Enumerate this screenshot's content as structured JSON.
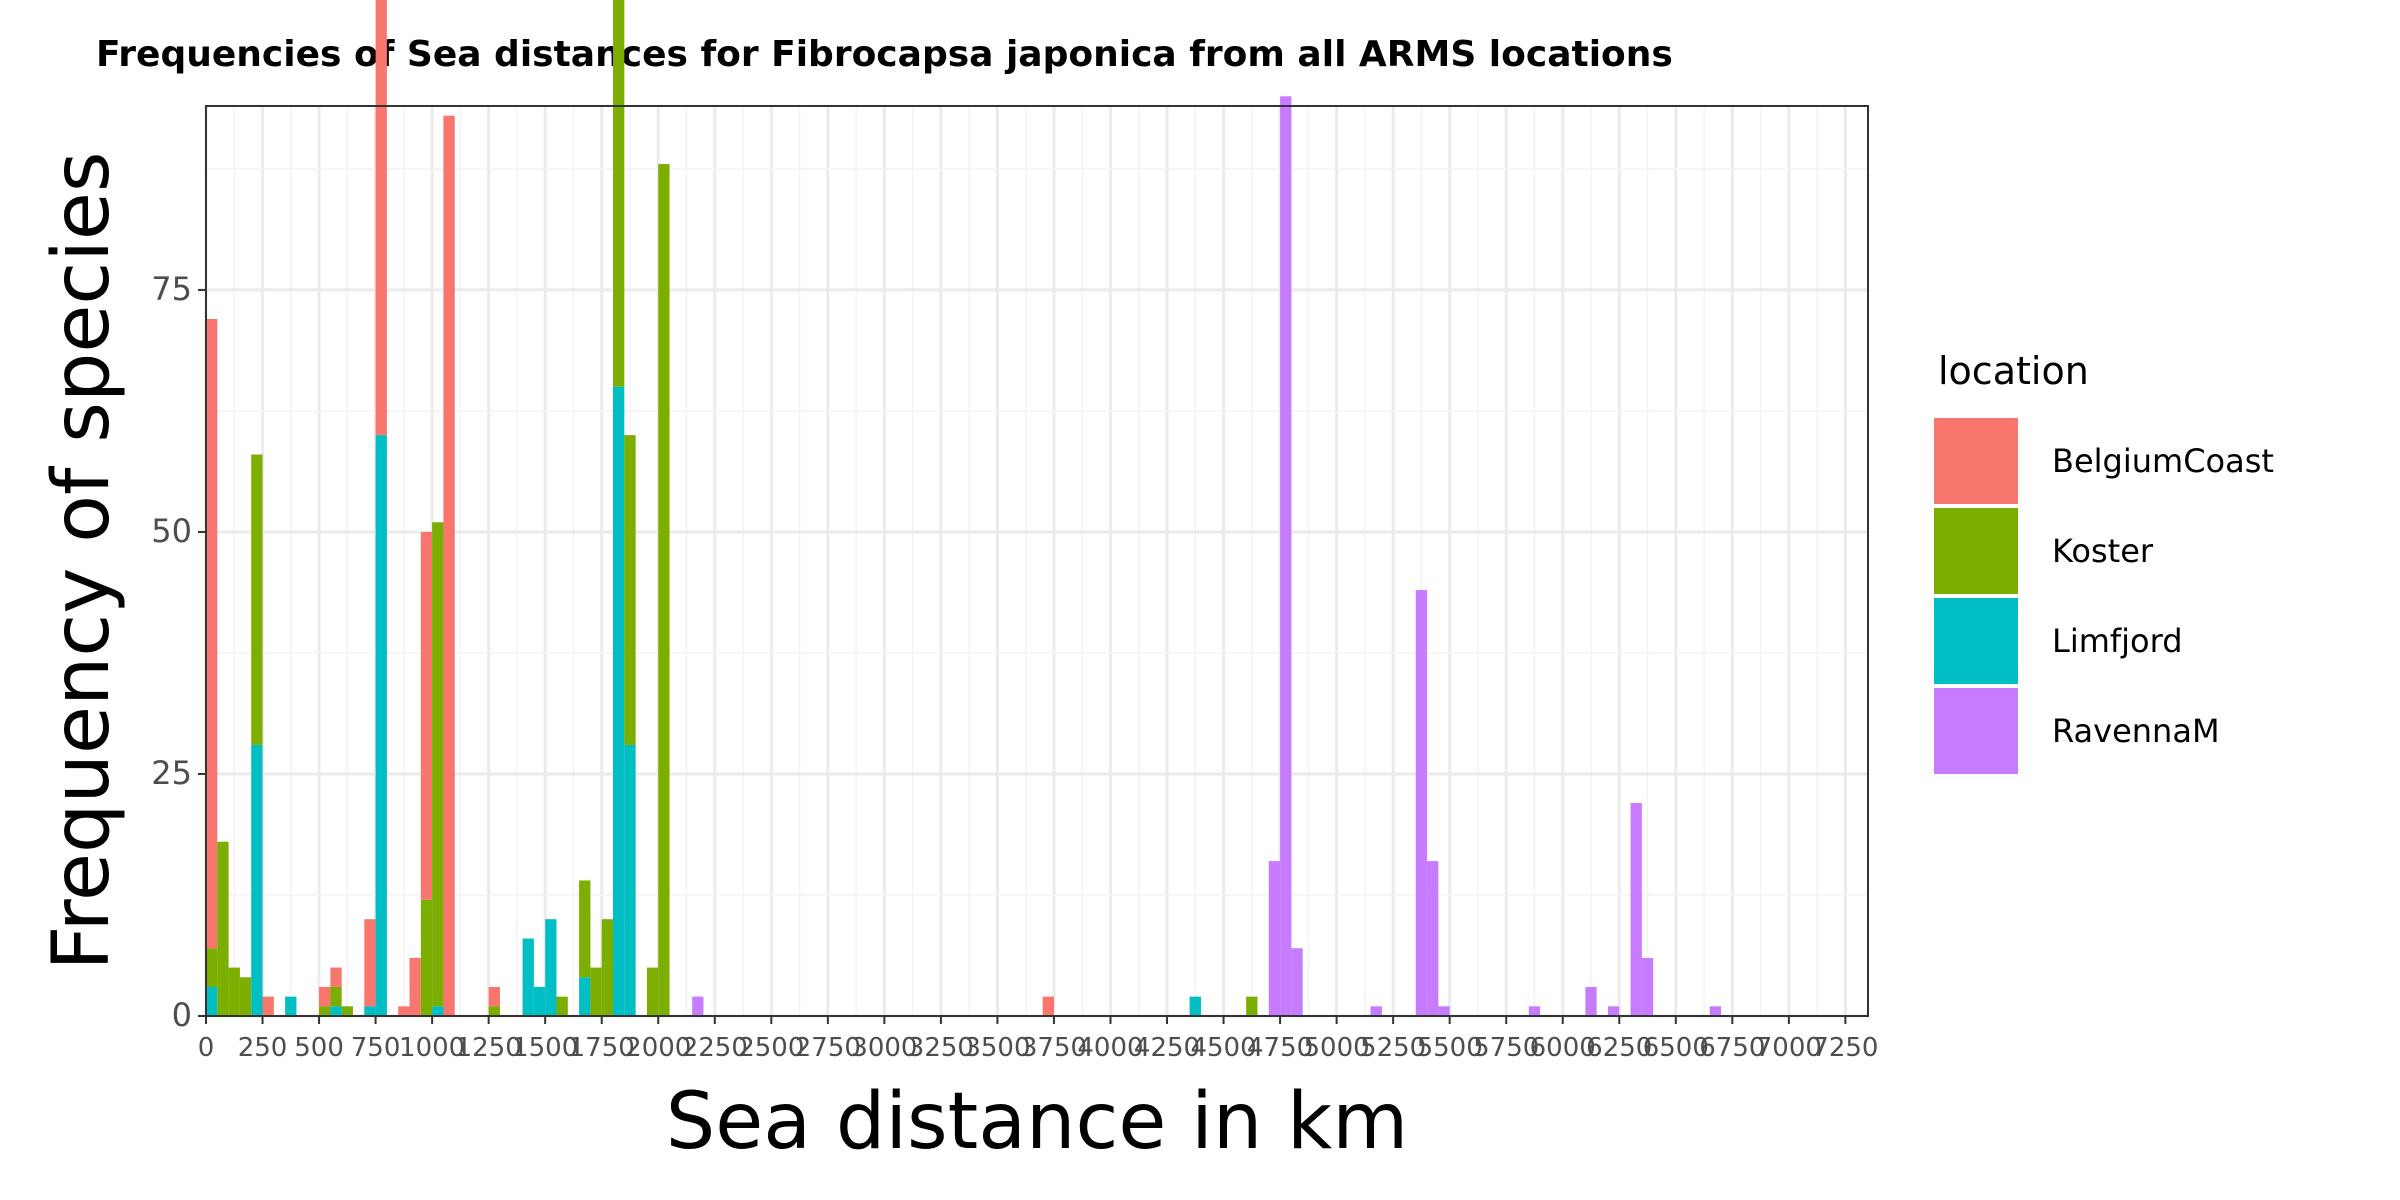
{
  "chart_data": {
    "type": "bar",
    "title": "Frequencies of Sea distances for Fibrocapsa japonica from all ARMS locations",
    "xlabel": "Sea distance in km",
    "ylabel": "Frequency of species",
    "xlim": [
      0,
      7250
    ],
    "ylim": [
      0,
      94
    ],
    "bin_width": 50,
    "stacked": true,
    "x_ticks": [
      0,
      250,
      500,
      750,
      1000,
      1250,
      1500,
      1750,
      2000,
      2250,
      2500,
      2750,
      3000,
      3250,
      3500,
      3750,
      4000,
      4250,
      4500,
      4750,
      5000,
      5250,
      5500,
      5750,
      6000,
      6250,
      6500,
      6750,
      7000,
      7250
    ],
    "x_tick_labels": [
      "0",
      "250",
      "500",
      "750",
      "1000",
      "1250",
      "1500",
      "1750",
      "2000",
      "2250",
      "2500",
      "2750",
      "3000",
      "3250",
      "3500",
      "3750",
      "4000",
      "4250",
      "4500",
      "4750",
      "5000",
      "5250",
      "5500",
      "5750",
      "6000",
      "6250",
      "6500",
      "6750",
      "7000",
      "7250"
    ],
    "y_ticks": [
      0,
      25,
      50,
      75
    ],
    "y_tick_labels": [
      "0",
      "25",
      "50",
      "75"
    ],
    "grid": true,
    "legend_title": "location",
    "legend_position": "right",
    "series": [
      {
        "name": "BelgiumCoast",
        "color": "#F8766D",
        "points": [
          [
            0,
            65
          ],
          [
            250,
            2
          ],
          [
            500,
            2
          ],
          [
            550,
            2
          ],
          [
            700,
            9
          ],
          [
            750,
            76
          ],
          [
            850,
            1
          ],
          [
            900,
            6
          ],
          [
            950,
            38
          ],
          [
            1050,
            93
          ],
          [
            1250,
            2
          ],
          [
            3700,
            2
          ]
        ]
      },
      {
        "name": "Koster",
        "color": "#7CAE00",
        "points": [
          [
            0,
            4
          ],
          [
            50,
            18
          ],
          [
            100,
            5
          ],
          [
            150,
            4
          ],
          [
            200,
            30
          ],
          [
            500,
            1
          ],
          [
            550,
            2
          ],
          [
            600,
            1
          ],
          [
            950,
            12
          ],
          [
            1000,
            50
          ],
          [
            1250,
            1
          ],
          [
            1550,
            2
          ],
          [
            1650,
            10
          ],
          [
            1700,
            5
          ],
          [
            1750,
            10
          ],
          [
            1800,
            65
          ],
          [
            1850,
            32
          ],
          [
            1950,
            5
          ],
          [
            2000,
            88
          ],
          [
            4600,
            2
          ]
        ]
      },
      {
        "name": "Limfjord",
        "color": "#00BFC4",
        "points": [
          [
            0,
            3
          ],
          [
            200,
            28
          ],
          [
            350,
            2
          ],
          [
            550,
            1
          ],
          [
            700,
            1
          ],
          [
            750,
            60
          ],
          [
            1000,
            1
          ],
          [
            1400,
            8
          ],
          [
            1450,
            3
          ],
          [
            1500,
            10
          ],
          [
            1650,
            4
          ],
          [
            1800,
            65
          ],
          [
            1850,
            28
          ],
          [
            4350,
            2
          ]
        ]
      },
      {
        "name": "RavennaM",
        "color": "#C77CFF",
        "points": [
          [
            2150,
            2
          ],
          [
            4700,
            16
          ],
          [
            4750,
            95
          ],
          [
            4800,
            7
          ],
          [
            5150,
            1
          ],
          [
            5350,
            44
          ],
          [
            5400,
            16
          ],
          [
            5450,
            1
          ],
          [
            5850,
            1
          ],
          [
            6100,
            3
          ],
          [
            6200,
            1
          ],
          [
            6300,
            22
          ],
          [
            6350,
            6
          ],
          [
            6650,
            1
          ]
        ]
      }
    ]
  }
}
